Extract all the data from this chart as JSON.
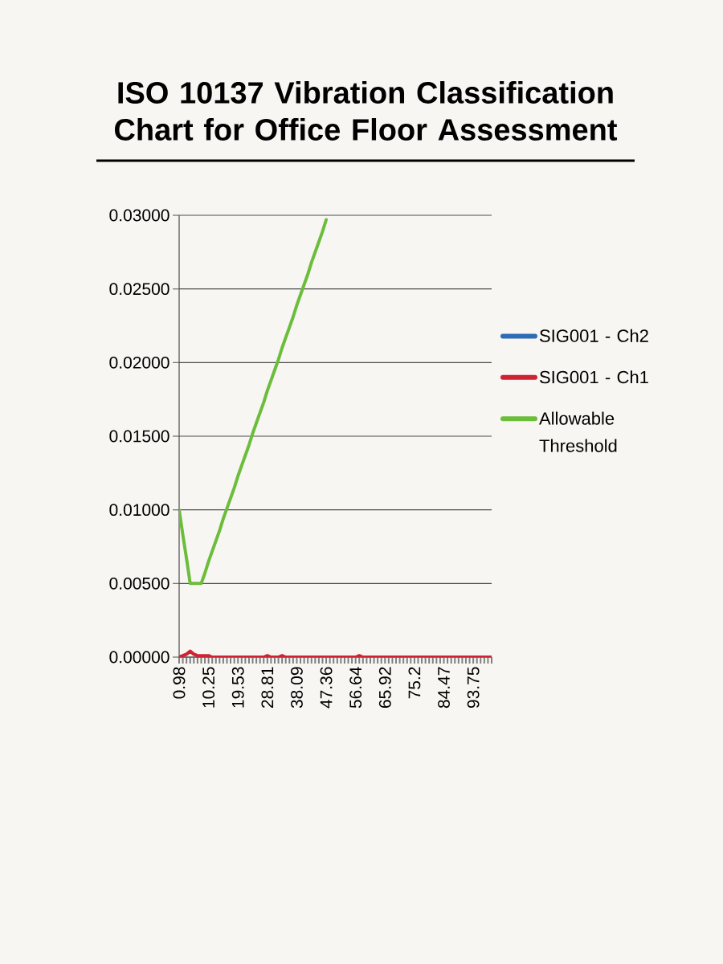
{
  "chart_data": {
    "type": "line",
    "title": "ISO 10137 Vibration Classification Chart for Office Floor Assessment",
    "categories": [
      "0.98",
      null,
      null,
      null,
      null,
      null,
      null,
      null,
      "10.25",
      null,
      null,
      null,
      null,
      null,
      null,
      null,
      "19.53",
      null,
      null,
      null,
      null,
      null,
      null,
      null,
      "28.81",
      null,
      null,
      null,
      null,
      null,
      null,
      null,
      "38.09",
      null,
      null,
      null,
      null,
      null,
      null,
      null,
      "47.36",
      null,
      null,
      null,
      null,
      null,
      null,
      null,
      "56.64",
      null,
      null,
      null,
      null,
      null,
      null,
      null,
      "65.92",
      null,
      null,
      null,
      null,
      null,
      null,
      null,
      "75.2",
      null,
      null,
      null,
      null,
      null,
      null,
      null,
      "84.47",
      null,
      null,
      null,
      null,
      null,
      null,
      null,
      "93.75",
      null,
      null,
      null,
      null,
      null
    ],
    "series": [
      {
        "name": "SIG001 - Ch2",
        "color": "#2e6db5",
        "values": [
          null,
          null,
          null,
          null,
          null,
          null,
          null,
          null,
          null,
          null,
          null,
          null,
          null,
          null,
          null,
          null,
          null,
          null,
          null,
          null,
          null,
          null,
          null,
          null,
          null,
          null,
          null,
          null,
          null,
          null,
          null,
          null,
          null,
          null,
          null,
          null,
          null,
          null,
          null,
          null,
          null,
          null,
          null,
          null,
          null,
          null,
          null,
          null,
          null,
          null,
          null,
          null,
          null,
          null,
          null,
          null,
          null,
          null,
          null,
          null,
          null,
          null,
          null,
          null,
          null,
          null,
          null,
          null,
          null,
          null,
          null,
          null,
          null,
          null,
          null,
          null,
          null,
          null,
          null,
          null,
          null,
          null,
          null,
          null,
          null,
          null
        ]
      },
      {
        "name": "SIG001 - Ch1",
        "color": "#cf2233",
        "values": [
          0,
          0.0001,
          0.0002,
          0.0004,
          0.0002,
          0.0001,
          0.0001,
          0.0001,
          0.0001,
          0,
          0,
          0,
          0,
          0,
          0,
          0,
          0,
          0,
          0,
          0,
          0,
          0,
          0,
          0,
          0.0001,
          0,
          0,
          0,
          0.0001,
          0,
          0,
          0,
          0,
          0,
          0,
          0,
          0,
          0,
          0,
          0,
          0,
          0,
          0,
          0,
          0,
          0,
          0,
          0,
          0,
          0.0001,
          0,
          0,
          0,
          0,
          0,
          0,
          0,
          0,
          0,
          0,
          0,
          0,
          0,
          0,
          0,
          0,
          0,
          0,
          0,
          0,
          0,
          0,
          0,
          0,
          0,
          0,
          0,
          0,
          0,
          0,
          0,
          0,
          0,
          0,
          0,
          0
        ]
      },
      {
        "name": "Allowable Threshold",
        "color": "#6cbd3c",
        "values": [
          0.01,
          0.0083,
          0.0067,
          0.005,
          0.005,
          0.005,
          0.005,
          0.0057,
          0.0065,
          0.0072,
          0.0079,
          0.0086,
          0.0094,
          0.0101,
          0.0108,
          0.0115,
          0.0123,
          0.013,
          0.0137,
          0.0144,
          0.0152,
          0.0159,
          0.0166,
          0.0173,
          0.0181,
          0.0188,
          0.0195,
          0.0202,
          0.021,
          0.0217,
          0.0224,
          0.0231,
          0.0239,
          0.0246,
          0.0253,
          0.026,
          0.0268,
          0.0275,
          0.0282,
          0.0289,
          0.0297,
          null,
          null,
          null,
          null,
          null,
          null,
          null,
          null,
          null,
          null,
          null,
          null,
          null,
          null,
          null,
          null,
          null,
          null,
          null,
          null,
          null,
          null,
          null,
          null,
          null,
          null,
          null,
          null,
          null,
          null,
          null,
          null,
          null,
          null,
          null,
          null,
          null,
          null,
          null,
          null,
          null,
          null,
          null,
          null,
          null
        ]
      }
    ],
    "ylim": [
      0,
      0.03
    ],
    "yticks": [
      {
        "value": 0,
        "label": "0.00000"
      },
      {
        "value": 0.005,
        "label": "0.00500"
      },
      {
        "value": 0.01,
        "label": "0.01000"
      },
      {
        "value": 0.015,
        "label": "0.01500"
      },
      {
        "value": 0.02,
        "label": "0.02000"
      },
      {
        "value": 0.025,
        "label": "0.02500"
      },
      {
        "value": 0.03,
        "label": "0.03000"
      }
    ],
    "grid": "y",
    "legend": "right",
    "marker": "none",
    "line_style": "solid"
  }
}
